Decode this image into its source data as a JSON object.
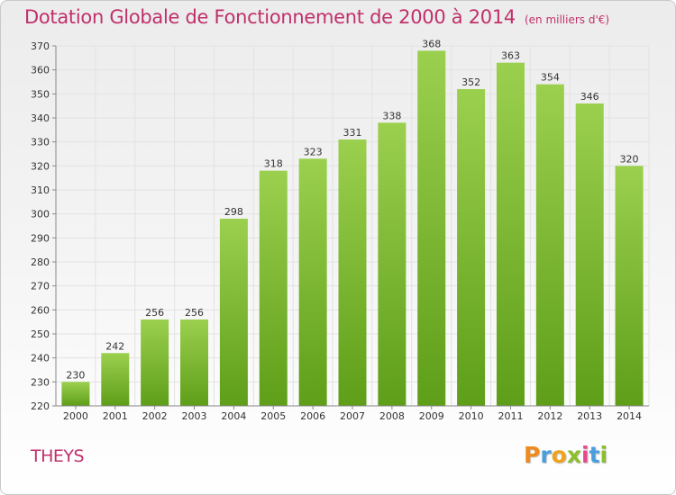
{
  "header": {
    "title": "Dotation Globale de Fonctionnement de 2000 à 2014",
    "unit": "(en milliers d'€)"
  },
  "commune": "THEYS",
  "logo": {
    "text": "Proxiti",
    "letter_colors": [
      "#f08a1c",
      "#4a9edb",
      "#f0a21c",
      "#8cbf2a",
      "#e64a8c",
      "#4a9edb",
      "#8cbf2a"
    ]
  },
  "colors": {
    "title": "#c0306a",
    "bar_top": "#9bd04e",
    "bar_bottom": "#5e9e18",
    "grid": "#e2e2e2",
    "axis": "#888888"
  },
  "chart_data": {
    "type": "bar",
    "title": "Dotation Globale de Fonctionnement de 2000 à 2014",
    "subtitle": "(en milliers d'€)",
    "xlabel": "",
    "ylabel": "",
    "categories": [
      "2000",
      "2001",
      "2002",
      "2003",
      "2004",
      "2005",
      "2006",
      "2007",
      "2008",
      "2009",
      "2010",
      "2011",
      "2012",
      "2013",
      "2014"
    ],
    "values": [
      230,
      242,
      256,
      256,
      298,
      318,
      323,
      331,
      338,
      368,
      352,
      363,
      354,
      346,
      320
    ],
    "ylim": [
      220,
      370
    ],
    "yticks": [
      220,
      230,
      240,
      250,
      260,
      270,
      280,
      290,
      300,
      310,
      320,
      330,
      340,
      350,
      360,
      370
    ],
    "grid": true,
    "legend": "none"
  }
}
